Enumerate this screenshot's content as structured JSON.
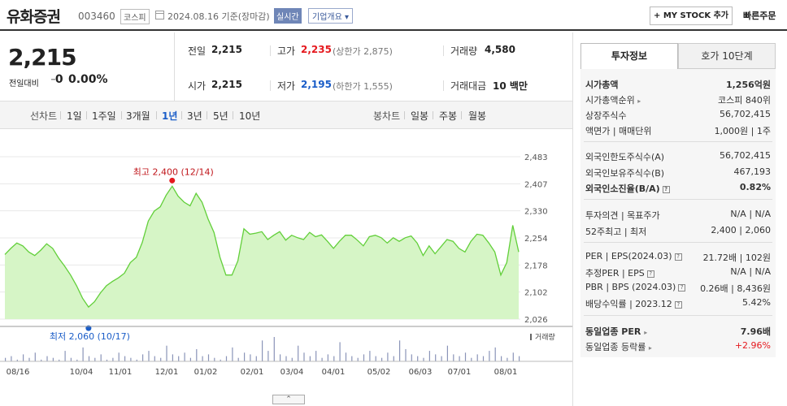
{
  "header": {
    "name": "유화증권",
    "code": "003460",
    "market": "코스피",
    "date": "2024.08.16 기준(장마감)",
    "realtime": "실시간",
    "overview": "기업개요",
    "mystock": "+ MY STOCK 추가",
    "quick_order": "빠른주문"
  },
  "price": {
    "current": "2,215",
    "change_label": "전일대비",
    "change_symbol": "━",
    "change_value": "0",
    "change_pct": "0.00%"
  },
  "quote": {
    "prev_label": "전일",
    "prev_value": "2,215",
    "high_label": "고가",
    "high_value": "2,235",
    "upper_limit": "(상한가 2,875)",
    "volume_label": "거래량",
    "volume_value": "4,580",
    "open_label": "시가",
    "open_value": "2,215",
    "low_label": "저가",
    "low_value": "2,195",
    "lower_limit": "(하한가 1,555)",
    "amount_label": "거래대금",
    "amount_value": "10 백만"
  },
  "period_bar": {
    "line_label": "선차트",
    "line_items": [
      "1일",
      "1주일",
      "3개월",
      "1년",
      "3년",
      "5년",
      "10년"
    ],
    "selected": "1년",
    "candle_label": "봉차트",
    "candle_items": [
      "일봉",
      "주봉",
      "월봉"
    ]
  },
  "chart_data": {
    "type": "area",
    "y_ticks": [
      "2,483",
      "2,407",
      "2,330",
      "2,254",
      "2,178",
      "2,102",
      "2,026"
    ],
    "x_ticks": [
      "08/16",
      "10/04",
      "11/01",
      "12/01",
      "01/02",
      "02/01",
      "03/04",
      "04/01",
      "05/02",
      "06/03",
      "07/01",
      "08/01"
    ],
    "ylim": [
      2026,
      2483
    ],
    "values": [
      2208,
      2225,
      2240,
      2232,
      2215,
      2205,
      2220,
      2238,
      2225,
      2198,
      2175,
      2150,
      2120,
      2085,
      2060,
      2075,
      2100,
      2120,
      2132,
      2142,
      2155,
      2185,
      2200,
      2242,
      2302,
      2330,
      2342,
      2375,
      2400,
      2372,
      2355,
      2345,
      2380,
      2355,
      2308,
      2270,
      2200,
      2150,
      2150,
      2190,
      2280,
      2265,
      2268,
      2272,
      2250,
      2262,
      2272,
      2248,
      2262,
      2255,
      2250,
      2270,
      2258,
      2263,
      2245,
      2225,
      2245,
      2262,
      2262,
      2248,
      2232,
      2258,
      2262,
      2255,
      2240,
      2255,
      2245,
      2255,
      2260,
      2240,
      2205,
      2232,
      2210,
      2230,
      2250,
      2245,
      2225,
      2215,
      2245,
      2265,
      2262,
      2240,
      2215,
      2150,
      2185,
      2290,
      2215
    ],
    "high_label": "최고 2,400 (12/14)",
    "low_label": "최저 2,060 (10/17)",
    "volume_label": "거래량",
    "volumes": [
      2,
      3,
      1,
      4,
      2,
      5,
      1,
      3,
      2,
      1,
      6,
      2,
      1,
      8,
      3,
      2,
      4,
      1,
      2,
      5,
      3,
      2,
      1,
      4,
      6,
      3,
      2,
      9,
      4,
      3,
      5,
      2,
      7,
      3,
      4,
      2,
      1,
      3,
      8,
      2,
      5,
      4,
      3,
      12,
      6,
      14,
      4,
      3,
      2,
      9,
      5,
      3,
      6,
      2,
      4,
      3,
      11,
      5,
      3,
      2,
      4,
      6,
      3,
      2,
      5,
      3,
      12,
      7,
      4,
      3,
      2,
      6,
      4,
      3,
      9,
      4,
      3,
      5,
      2,
      4,
      3,
      6,
      8,
      3,
      2,
      5,
      3
    ],
    "grid": true
  },
  "right_panel": {
    "tab_invest": "투자정보",
    "tab_order": "호가 10단계",
    "rows": [
      {
        "label": "시가총액",
        "value": "1,256억원",
        "bold": true
      },
      {
        "label": "시가총액순위",
        "value": "코스피 840위"
      },
      {
        "label": "상장주식수",
        "value": "56,702,415"
      },
      {
        "label": "액면가 | 매매단위",
        "value": "1,000원 | 1주"
      },
      {
        "label": "외국인한도주식수(A)",
        "value": "56,702,415"
      },
      {
        "label": "외국인보유주식수(B)",
        "value": "467,193"
      },
      {
        "label": "외국인소진율(B/A)",
        "value": "0.82%",
        "bold": true
      },
      {
        "label": "투자의견 | 목표주가",
        "value": "N/A | N/A"
      },
      {
        "label": "52주최고 | 최저",
        "value": "2,400 | 2,060"
      },
      {
        "label": "PER | EPS(2024.03)",
        "value": "21.72배 | 102원"
      },
      {
        "label": "추정PER | EPS",
        "value": "N/A | N/A"
      },
      {
        "label": "PBR | BPS (2024.03)",
        "value": "0.26배 | 8,436원"
      },
      {
        "label": "배당수익률 | 2023.12",
        "value": "5.42%"
      },
      {
        "label": "동일업종 PER",
        "value": "7.96배",
        "bold": true
      },
      {
        "label": "동일업종 등락률",
        "value": "+2.96%"
      }
    ]
  },
  "colors": {
    "up": "#e5191e",
    "down": "#1a5dc8",
    "chart_line": "#62cf3a",
    "chart_fill": "#d6f5c6"
  }
}
